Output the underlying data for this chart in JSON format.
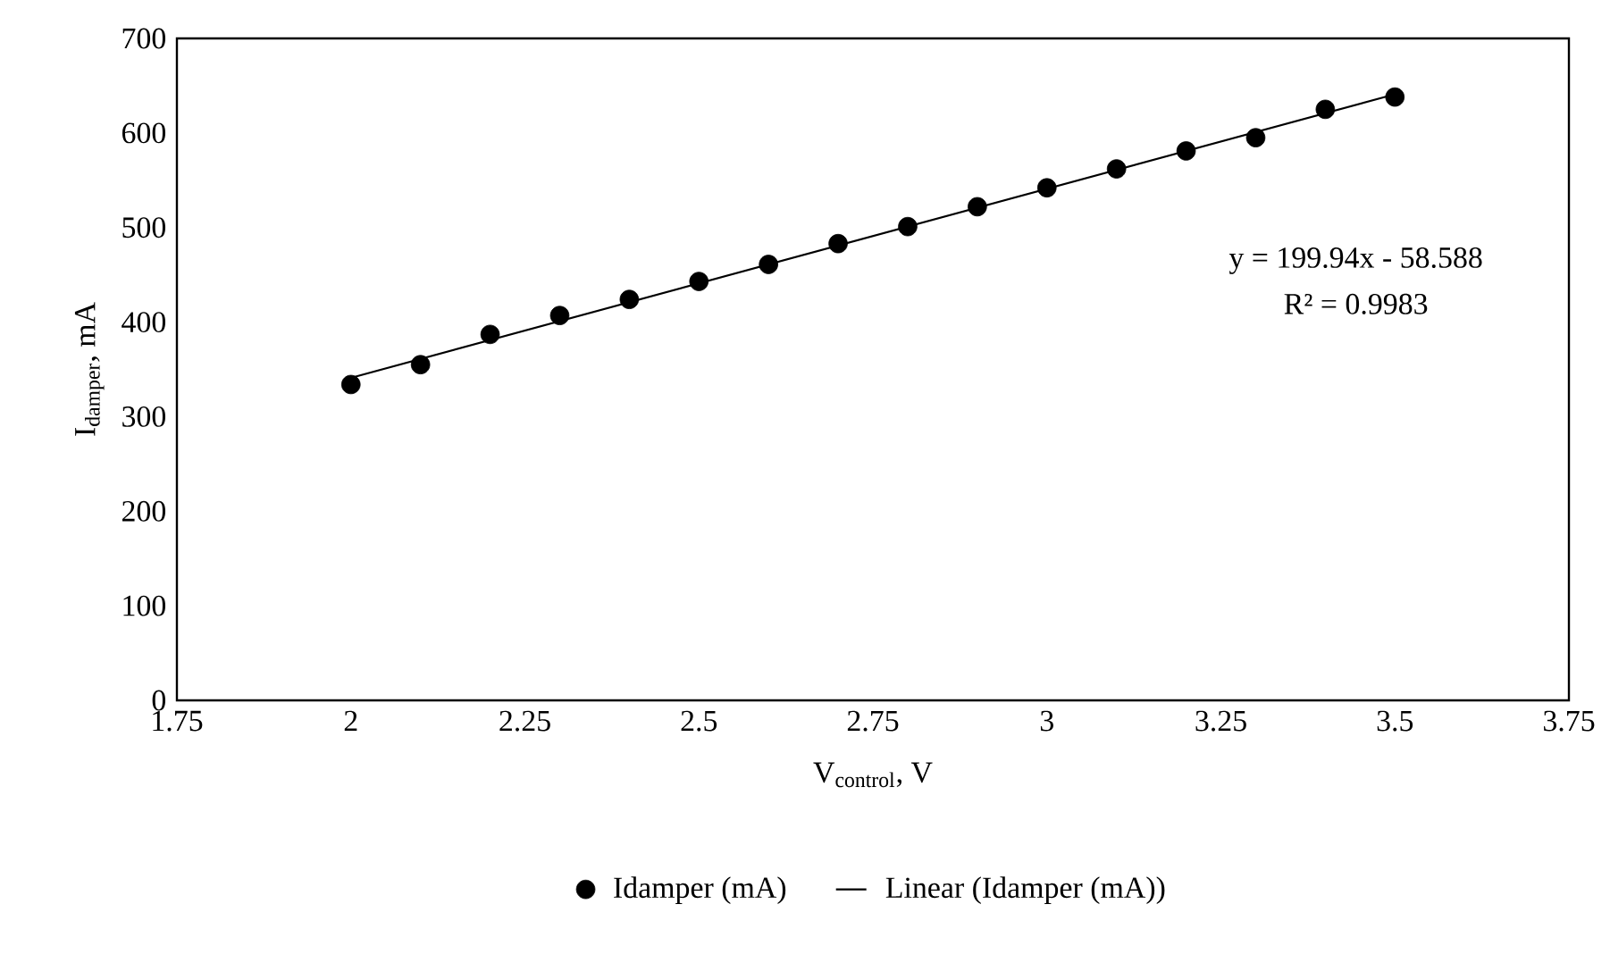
{
  "chart_data": {
    "type": "scatter",
    "xlabel": "V$_{control}$, V",
    "ylabel": "I$_{damper}$, mA",
    "xlim": [
      1.75,
      3.75
    ],
    "xticks": [
      1.75,
      2,
      2.25,
      2.5,
      2.75,
      3,
      3.25,
      3.5,
      3.75
    ],
    "ylim": [
      0,
      700
    ],
    "yticks": [
      0,
      100,
      200,
      300,
      400,
      500,
      600,
      700
    ],
    "grid": false,
    "legend": "bottom",
    "annotations": [
      "y = 199.94x - 58.588",
      "R² = 0.9983"
    ],
    "series": [
      {
        "name": "Idamper (mA)",
        "marker": "circle",
        "color": "#000000",
        "x": [
          2,
          2.1,
          2.2,
          2.3,
          2.4,
          2.5,
          2.6,
          2.7,
          2.8,
          2.9,
          3,
          3.1,
          3.2,
          3.3,
          3.4,
          3.5
        ],
        "values": [
          334,
          355,
          387,
          407,
          424,
          443,
          461,
          483,
          501,
          522,
          542,
          562,
          581,
          595,
          625,
          638
        ]
      },
      {
        "name": "Linear (Idamper (mA))",
        "type": "line",
        "marker": "none",
        "line_style": "solid",
        "color": "#000000",
        "x": [
          2,
          3.5
        ],
        "values": [
          341,
          641
        ]
      }
    ]
  }
}
